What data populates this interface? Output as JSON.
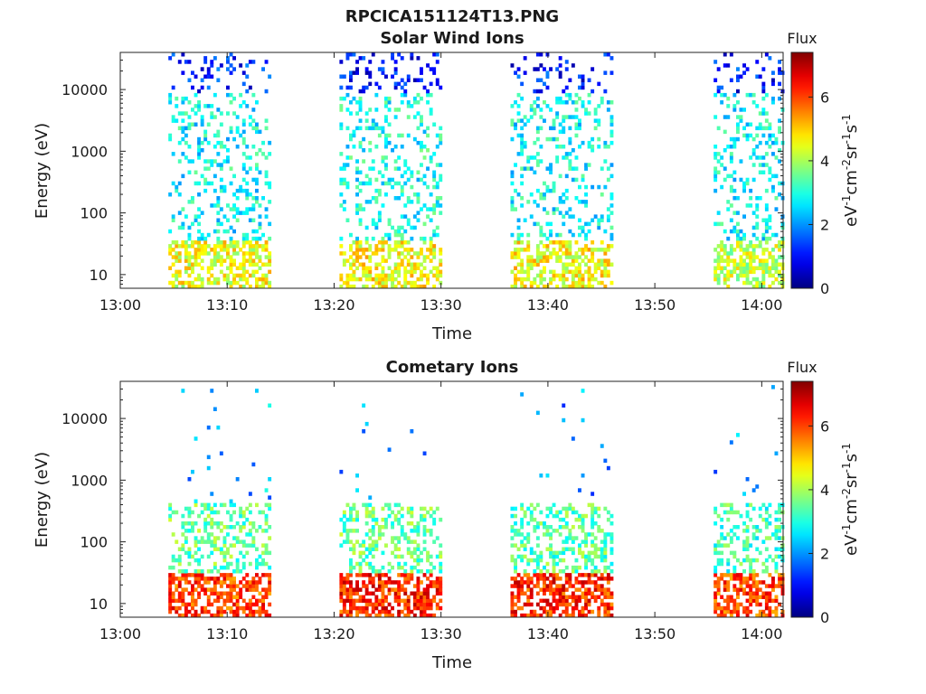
{
  "figure_title": "RPCICA151124T13.PNG",
  "chart_data": [
    {
      "type": "heatmap",
      "title": "Solar Wind Ions",
      "xlabel": "Time",
      "ylabel": "Energy (eV)",
      "y_scale": "log",
      "x_ticks": [
        "13:00",
        "13:10",
        "13:20",
        "13:30",
        "13:40",
        "13:50",
        "14:00"
      ],
      "y_ticks": [
        "10",
        "100",
        "1000",
        "10000"
      ],
      "xlim": [
        "13:00",
        "14:02"
      ],
      "ylim": [
        6,
        40000
      ],
      "colorbar": {
        "label": "Flux",
        "unit": "eV-1cm-2sr-1s-1",
        "range": [
          0,
          7.4
        ],
        "ticks": [
          "0",
          "2",
          "4",
          "6"
        ],
        "colormap": "jet"
      },
      "scan_intervals": [
        {
          "start": "13:04.5",
          "end": "13:14",
          "low_flux": 4.5,
          "mid_flux": 2.8,
          "high_flux": 1.2
        },
        {
          "start": "13:20.5",
          "end": "13:30",
          "low_flux": 4.6,
          "mid_flux": 2.9,
          "high_flux": 1.0
        },
        {
          "start": "13:36.5",
          "end": "13:46",
          "low_flux": 4.6,
          "mid_flux": 2.8,
          "high_flux": 1.1
        },
        {
          "start": "13:55.5",
          "end": "14:02",
          "low_flux": 4.2,
          "mid_flux": 2.8,
          "high_flux": 1.1
        }
      ]
    },
    {
      "type": "heatmap",
      "title": "Cometary Ions",
      "xlabel": "Time",
      "ylabel": "Energy (eV)",
      "y_scale": "log",
      "x_ticks": [
        "13:00",
        "13:10",
        "13:20",
        "13:30",
        "13:40",
        "13:50",
        "14:00"
      ],
      "y_ticks": [
        "10",
        "100",
        "1000",
        "10000"
      ],
      "xlim": [
        "13:00",
        "14:02"
      ],
      "ylim": [
        6,
        40000
      ],
      "colorbar": {
        "label": "Flux",
        "unit": "eV-1cm-2sr-1s-1",
        "range": [
          0,
          7.4
        ],
        "ticks": [
          "0",
          "2",
          "4",
          "6"
        ],
        "colormap": "jet"
      },
      "scan_intervals": [
        {
          "start": "13:04.5",
          "end": "13:14",
          "low_flux": 6.0,
          "mid_flux": 3.5,
          "high_flux": 2.2
        },
        {
          "start": "13:20.5",
          "end": "13:30",
          "low_flux": 6.2,
          "mid_flux": 3.5,
          "high_flux": 2.0
        },
        {
          "start": "13:36.5",
          "end": "13:46",
          "low_flux": 6.2,
          "mid_flux": 3.4,
          "high_flux": 2.0
        },
        {
          "start": "13:55.5",
          "end": "14:02",
          "low_flux": 6.0,
          "mid_flux": 3.3,
          "high_flux": 2.0
        }
      ]
    }
  ]
}
